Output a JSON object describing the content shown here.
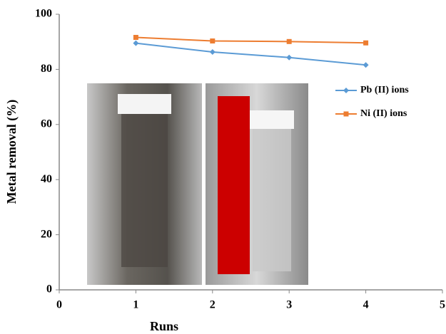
{
  "chart_data": {
    "type": "line",
    "x": [
      1,
      2,
      3,
      4
    ],
    "series": [
      {
        "name": "Pb (II) ions",
        "color": "#5b9bd5",
        "marker": "diamond",
        "values": [
          89.5,
          86.3,
          84.3,
          81.6
        ]
      },
      {
        "name": "Ni (II) ions",
        "color": "#ed7d31",
        "marker": "square",
        "values": [
          91.6,
          90.3,
          90.1,
          89.6
        ]
      }
    ],
    "xlabel": "Runs",
    "ylabel": "Metal removal (%)",
    "xlim": [
      0,
      5
    ],
    "xticks": [
      0,
      1,
      2,
      3,
      4,
      5
    ],
    "ylim": [
      0,
      100
    ],
    "yticks": [
      0,
      20,
      40,
      60,
      80,
      100
    ],
    "grid": false,
    "legend": "right"
  }
}
